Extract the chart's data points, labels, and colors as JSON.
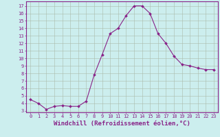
{
  "x": [
    0,
    1,
    2,
    3,
    4,
    5,
    6,
    7,
    8,
    9,
    10,
    11,
    12,
    13,
    14,
    15,
    16,
    17,
    18,
    19,
    20,
    21,
    22,
    23
  ],
  "y": [
    4.5,
    4.0,
    3.2,
    3.6,
    3.7,
    3.6,
    3.6,
    4.3,
    7.8,
    10.5,
    13.3,
    14.0,
    15.7,
    17.0,
    17.0,
    16.0,
    13.3,
    12.0,
    10.3,
    9.2,
    9.0,
    8.7,
    8.5,
    8.5
  ],
  "line_color": "#882288",
  "marker": "D",
  "marker_size": 2.0,
  "bg_color": "#cceeee",
  "grid_color": "#aabbaa",
  "xlabel": "Windchill (Refroidissement éolien,°C)",
  "xlim": [
    -0.5,
    23.5
  ],
  "ylim": [
    2.8,
    17.6
  ],
  "yticks": [
    3,
    4,
    5,
    6,
    7,
    8,
    9,
    10,
    11,
    12,
    13,
    14,
    15,
    16,
    17
  ],
  "xticks": [
    0,
    1,
    2,
    3,
    4,
    5,
    6,
    7,
    8,
    9,
    10,
    11,
    12,
    13,
    14,
    15,
    16,
    17,
    18,
    19,
    20,
    21,
    22,
    23
  ],
  "axis_color": "#882288",
  "tick_color": "#882288",
  "label_fontsize": 6.0,
  "tick_fontsize": 5.0,
  "xlabel_fontsize": 6.5
}
